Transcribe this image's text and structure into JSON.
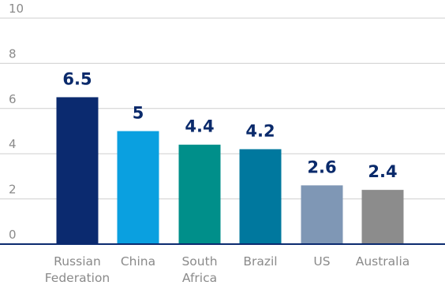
{
  "chart_data": {
    "type": "bar",
    "title": "",
    "xlabel": "",
    "ylabel": "",
    "ylim": [
      0,
      10
    ],
    "yticks": [
      "0",
      "2",
      "4",
      "6",
      "8",
      "10"
    ],
    "grid": true,
    "categories": [
      [
        "Russian",
        "Federation"
      ],
      [
        "China"
      ],
      [
        "South",
        "Africa"
      ],
      [
        "Brazil"
      ],
      [
        "US"
      ],
      [
        "Australia"
      ]
    ],
    "values": [
      6.5,
      5,
      4.4,
      4.2,
      2.6,
      2.4
    ],
    "value_labels": [
      "6.5",
      "5",
      "4.4",
      "4.2",
      "2.6",
      "2.4"
    ],
    "colors": [
      "#0b2a6f",
      "#0aa0e0",
      "#008f8a",
      "#00789e",
      "#7f97b5",
      "#8c8c8c"
    ],
    "grid_color": "#cfcfcf",
    "axis_color": "#0b2a6f",
    "label_color": "#0a2a6b"
  }
}
